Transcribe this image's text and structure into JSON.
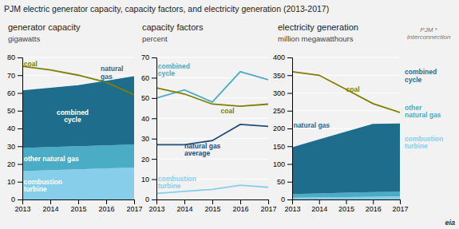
{
  "title": "PJM electric generator capacity, capacity factors, and electricity generation (2013-2017)",
  "annotations": [
    "PJM *\nInterconnection",
    "eia"
  ],
  "chart_data": [
    {
      "type": "area",
      "stacked": true,
      "grid": true,
      "title": "generator capacity",
      "ylabel": "gigawatts",
      "x": [
        2013,
        2014,
        2015,
        2016,
        2017
      ],
      "xlim": [
        2013,
        2017
      ],
      "xticks": [
        2013,
        2014,
        2015,
        2016,
        2017
      ],
      "ylim": [
        0,
        80
      ],
      "yticks": [
        0,
        10,
        20,
        30,
        40,
        50,
        60,
        70,
        80
      ],
      "series": [
        {
          "name": "combustion\nturbine",
          "type": "area",
          "color": "#87CEEB",
          "values": [
            16,
            16.5,
            17,
            17.5,
            18
          ]
        },
        {
          "name": "other natural gas",
          "type": "area",
          "color": "#4BACC6",
          "values": [
            13,
            13,
            13,
            13,
            13
          ]
        },
        {
          "name": "combined\ncycle",
          "type": "area",
          "color": "#1F6D8C",
          "values": [
            32,
            33,
            34,
            36,
            38
          ]
        },
        {
          "name": "coal",
          "type": "line",
          "color": "#7F7F00",
          "values": [
            75,
            73,
            70,
            66,
            59
          ]
        },
        {
          "name": "natural\ngas",
          "type": "line",
          "color": "#1F6D8C",
          "values": [
            61,
            62.5,
            64,
            66.5,
            69
          ]
        }
      ]
    },
    {
      "type": "line",
      "grid": true,
      "title": "capacity factors",
      "ylabel": "percent",
      "x": [
        2013,
        2014,
        2015,
        2016,
        2017
      ],
      "xlim": [
        2013,
        2017
      ],
      "xticks": [
        2013,
        2014,
        2015,
        2016,
        2017
      ],
      "ylim": [
        0,
        70
      ],
      "yticks": [
        0,
        10,
        20,
        30,
        40,
        50,
        60,
        70
      ],
      "series": [
        {
          "name": "combined\ncycle",
          "type": "line",
          "color": "#4BACC6",
          "values": [
            50,
            54,
            48,
            63,
            59
          ]
        },
        {
          "name": "coal",
          "type": "line",
          "color": "#7F7F00",
          "values": [
            55,
            52,
            47,
            46,
            47
          ]
        },
        {
          "name": "natural gas\naverage",
          "type": "line",
          "color": "#1F4E79",
          "values": [
            27,
            27,
            29,
            37,
            36
          ]
        },
        {
          "name": "combustion\nturbine",
          "type": "line",
          "color": "#87CEEB",
          "values": [
            3,
            4,
            5,
            7,
            6
          ]
        }
      ]
    },
    {
      "type": "area",
      "stacked": true,
      "grid": true,
      "legend": "right",
      "title": "electricity generation",
      "ylabel": "million megawatthours",
      "x": [
        2013,
        2014,
        2015,
        2016,
        2017
      ],
      "xlim": [
        2013,
        2017
      ],
      "xticks": [
        2013,
        2014,
        2015,
        2016,
        2017
      ],
      "ylim": [
        0,
        400
      ],
      "yticks": [
        0,
        50,
        100,
        150,
        200,
        250,
        300,
        350,
        400
      ],
      "series": [
        {
          "name": "combustion\nturbine",
          "type": "area",
          "color": "#87CEEB",
          "values": [
            5,
            6,
            7,
            8,
            9
          ]
        },
        {
          "name": "other\nnatural gas",
          "type": "area",
          "color": "#4BACC6",
          "values": [
            10,
            11,
            12,
            13,
            13
          ]
        },
        {
          "name": "combined\ncycle",
          "type": "area",
          "color": "#1F6D8C",
          "values": [
            130,
            150,
            170,
            190,
            190
          ]
        },
        {
          "name": "coal",
          "type": "line",
          "color": "#7F7F00",
          "values": [
            360,
            350,
            310,
            270,
            245
          ]
        },
        {
          "name": "natural gas",
          "type": "line",
          "color": "#1F6D8C",
          "values": [
            145,
            167,
            189,
            211,
            212
          ]
        }
      ]
    }
  ]
}
